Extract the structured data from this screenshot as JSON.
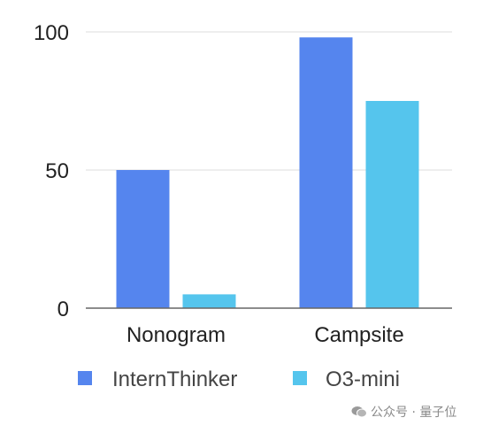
{
  "chart_data": {
    "type": "bar",
    "categories": [
      "Nonogram",
      "Campsite"
    ],
    "series": [
      {
        "name": "InternThinker",
        "values": [
          50,
          98
        ],
        "color": "#5585EE"
      },
      {
        "name": "O3-mini",
        "values": [
          5,
          75
        ],
        "color": "#55C5ED"
      }
    ],
    "ylim": [
      0,
      100
    ],
    "yticks": [
      0,
      50,
      100
    ],
    "grid": true,
    "legend": "bottom"
  },
  "watermark": {
    "text": "公众号 · 量子位",
    "icon": "wechat-icon"
  }
}
